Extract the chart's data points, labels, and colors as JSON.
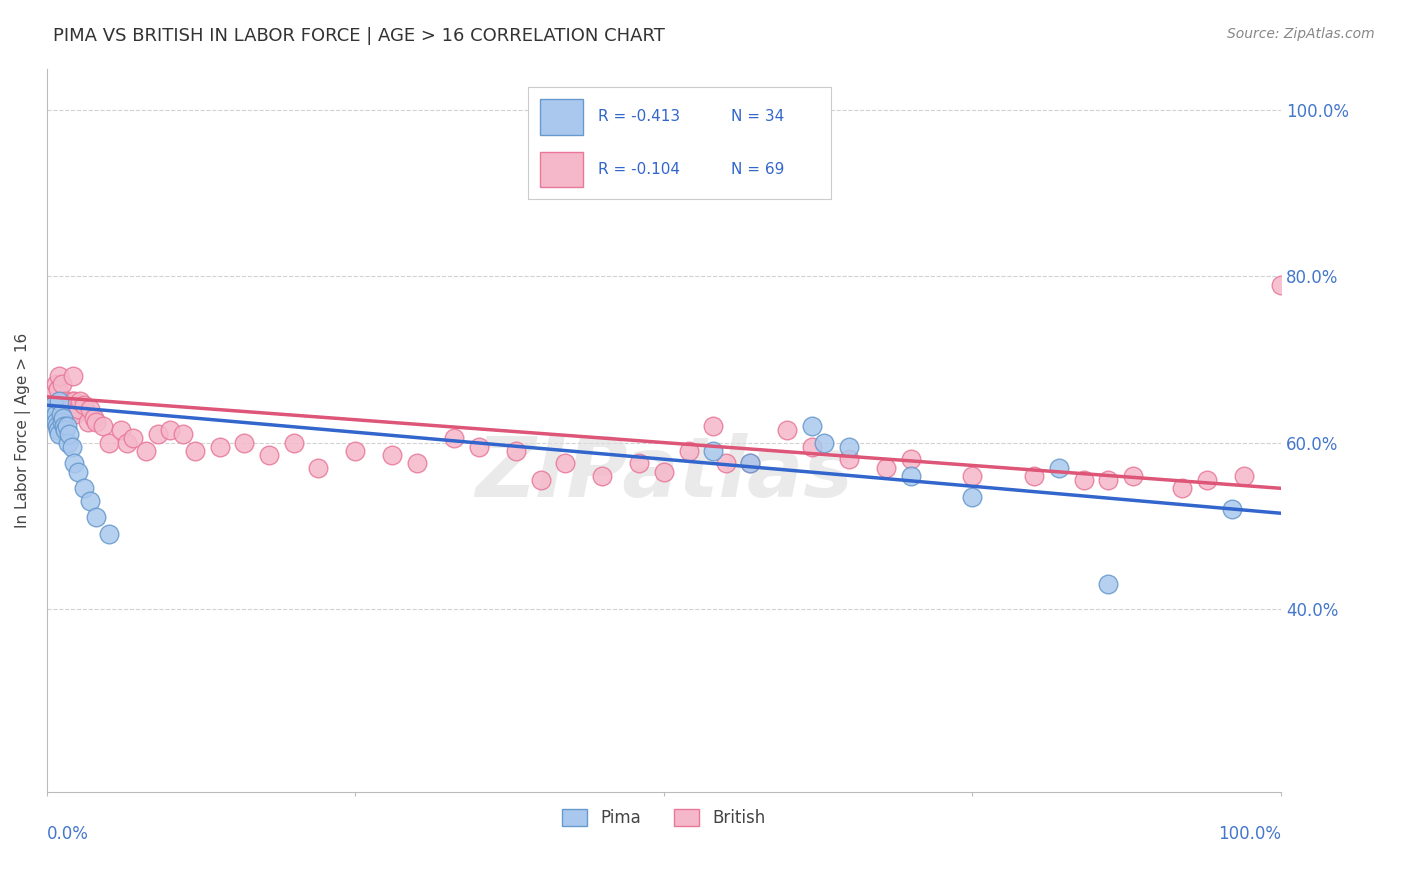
{
  "title": "PIMA VS BRITISH IN LABOR FORCE | AGE > 16 CORRELATION CHART",
  "source": "Source: ZipAtlas.com",
  "ylabel": "In Labor Force | Age > 16",
  "xlim": [
    0.0,
    1.0
  ],
  "ylim": [
    0.18,
    1.05
  ],
  "ytick_vals": [
    0.4,
    0.6,
    0.8,
    1.0
  ],
  "ytick_labels": [
    "40.0%",
    "60.0%",
    "80.0%",
    "100.0%"
  ],
  "background_color": "#ffffff",
  "grid_color": "#cccccc",
  "pima_color": "#aac8ee",
  "pima_edge_color": "#6699cc",
  "british_color": "#f5b8cb",
  "british_edge_color": "#e87898",
  "trend_pima_color": "#3366cc",
  "trend_british_color": "#dd5577",
  "legend_r_pima": "R = -0.413",
  "legend_n_pima": "N = 34",
  "legend_r_british": "R = -0.104",
  "legend_n_british": "N = 69",
  "watermark": "ZIPatlas",
  "pima_x": [
    0.004,
    0.005,
    0.006,
    0.007,
    0.007,
    0.008,
    0.009,
    0.01,
    0.01,
    0.011,
    0.012,
    0.013,
    0.014,
    0.015,
    0.016,
    0.017,
    0.018,
    0.02,
    0.022,
    0.025,
    0.03,
    0.035,
    0.04,
    0.05,
    0.54,
    0.57,
    0.62,
    0.63,
    0.65,
    0.7,
    0.75,
    0.82,
    0.86,
    0.96
  ],
  "pima_y": [
    0.63,
    0.64,
    0.645,
    0.635,
    0.625,
    0.62,
    0.615,
    0.65,
    0.61,
    0.635,
    0.625,
    0.63,
    0.62,
    0.615,
    0.62,
    0.6,
    0.61,
    0.595,
    0.575,
    0.565,
    0.545,
    0.53,
    0.51,
    0.49,
    0.59,
    0.575,
    0.62,
    0.6,
    0.595,
    0.56,
    0.535,
    0.57,
    0.43,
    0.52
  ],
  "british_x": [
    0.004,
    0.006,
    0.007,
    0.009,
    0.01,
    0.011,
    0.012,
    0.013,
    0.014,
    0.015,
    0.016,
    0.017,
    0.018,
    0.019,
    0.02,
    0.021,
    0.022,
    0.023,
    0.025,
    0.027,
    0.03,
    0.033,
    0.035,
    0.038,
    0.04,
    0.045,
    0.05,
    0.06,
    0.065,
    0.07,
    0.08,
    0.09,
    0.1,
    0.11,
    0.12,
    0.14,
    0.16,
    0.18,
    0.2,
    0.22,
    0.25,
    0.28,
    0.3,
    0.33,
    0.35,
    0.38,
    0.4,
    0.42,
    0.45,
    0.48,
    0.5,
    0.52,
    0.54,
    0.55,
    0.57,
    0.6,
    0.62,
    0.65,
    0.68,
    0.7,
    0.75,
    0.8,
    0.84,
    0.86,
    0.88,
    0.92,
    0.94,
    0.97,
    1.0
  ],
  "british_y": [
    0.64,
    0.66,
    0.67,
    0.665,
    0.68,
    0.64,
    0.67,
    0.645,
    0.635,
    0.65,
    0.64,
    0.645,
    0.635,
    0.64,
    0.65,
    0.68,
    0.65,
    0.635,
    0.64,
    0.65,
    0.645,
    0.625,
    0.64,
    0.63,
    0.625,
    0.62,
    0.6,
    0.615,
    0.6,
    0.605,
    0.59,
    0.61,
    0.615,
    0.61,
    0.59,
    0.595,
    0.6,
    0.585,
    0.6,
    0.57,
    0.59,
    0.585,
    0.575,
    0.605,
    0.595,
    0.59,
    0.555,
    0.575,
    0.56,
    0.575,
    0.565,
    0.59,
    0.62,
    0.575,
    0.575,
    0.615,
    0.595,
    0.58,
    0.57,
    0.58,
    0.56,
    0.56,
    0.555,
    0.555,
    0.56,
    0.545,
    0.555,
    0.56,
    0.79
  ],
  "pima_trend_x0": 0.0,
  "pima_trend_y0": 0.645,
  "pima_trend_x1": 1.0,
  "pima_trend_y1": 0.515,
  "british_trend_x0": 0.0,
  "british_trend_y0": 0.655,
  "british_trend_x1": 1.0,
  "british_trend_y1": 0.545
}
